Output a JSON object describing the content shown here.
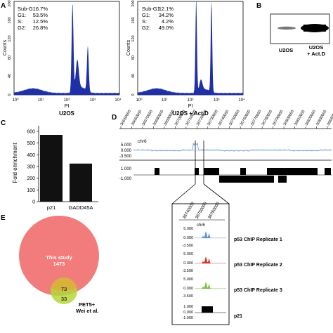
{
  "panels": {
    "A": "A",
    "B": "B",
    "C": "C",
    "D": "D",
    "E": "E"
  },
  "colors": {
    "histogram": "#1f2fa6",
    "bar": "#111111",
    "track_blue": "#5b8fd6",
    "track_red": "#d9302a",
    "track_green": "#7ac142",
    "venn_big": "#f27b7b",
    "venn_small": "#b6d63a"
  },
  "panel_a": {
    "histograms": [
      {
        "stats": [
          {
            "label": "Sub-G1:",
            "value": "6.7%"
          },
          {
            "label": "G1:",
            "value": "53.5%"
          },
          {
            "label": "S:",
            "value": "12.5%"
          },
          {
            "label": "G2:",
            "value": "26.8%"
          }
        ],
        "ylabel": "Counts",
        "xlabel": "PI",
        "caption": "U2OS",
        "yticks": [
          "0",
          "40",
          "80",
          "120",
          "160",
          "200"
        ],
        "xticks": [
          "10⁰",
          "10¹",
          "10²",
          "10³",
          "10⁴"
        ]
      },
      {
        "stats": [
          {
            "label": "Sub-G1:",
            "value": "12.1%"
          },
          {
            "label": "G1:",
            "value": "34.2%"
          },
          {
            "label": "S:",
            "value": "4.2%"
          },
          {
            "label": "G2:",
            "value": "49.0%"
          }
        ],
        "ylabel": "Counts",
        "xlabel": "PI",
        "caption": "U2OS + Act.D",
        "yticks": [
          "0",
          "40",
          "80",
          "120",
          "160",
          "200"
        ],
        "xticks": [
          "10⁰",
          "10¹",
          "10²",
          "10³",
          "10⁴"
        ]
      }
    ]
  },
  "panel_b": {
    "lanes": [
      "U2OS",
      "U2OS",
      "+ Act.D"
    ]
  },
  "chart_data": {
    "type": "bar",
    "categories": [
      "p21",
      "GADD45A"
    ],
    "values": [
      570,
      325
    ],
    "ylabel": "Fold enrichment",
    "ylim": [
      0,
      600
    ],
    "yticks": [
      0,
      100,
      200,
      300,
      400,
      500,
      600
    ]
  },
  "panel_d": {
    "coords": [
      "36650000",
      "36660000",
      "36670000",
      "36680000",
      "36690000",
      "36700000",
      "36710000",
      "36720000",
      "36730000",
      "36740000",
      "36750000",
      "36760000",
      "36770000",
      "36780000",
      "36790000",
      "36800000",
      "36810000",
      "36820000",
      "36830000",
      "36840000"
    ],
    "chrom": "chr6",
    "track_ticks": [
      "5.000",
      "0.000",
      "-3.500"
    ],
    "gene_ticks": [
      "1.000",
      "-1.000"
    ],
    "zoom_coords": [
      "36740000",
      "36750000",
      "36760000"
    ],
    "zoom_chrom": "chr6",
    "zoom_track_ticks": [
      "5.000",
      "0.000",
      "-3.500"
    ],
    "zoom_gene_ticks": [
      "1.000",
      "0.000",
      "-1.000"
    ],
    "tracks": [
      {
        "label": "p53 ChIP Replicate 1"
      },
      {
        "label": "p53 ChIP Replicate 2"
      },
      {
        "label": "p53 ChIP Replicate 3"
      },
      {
        "label": "p21"
      }
    ]
  },
  "panel_e": {
    "big_label": "This study",
    "big_count": "1473",
    "overlap_count": "73",
    "small_count": "33",
    "small_label_1": "PET5+",
    "small_label_2": "Wei et al."
  }
}
